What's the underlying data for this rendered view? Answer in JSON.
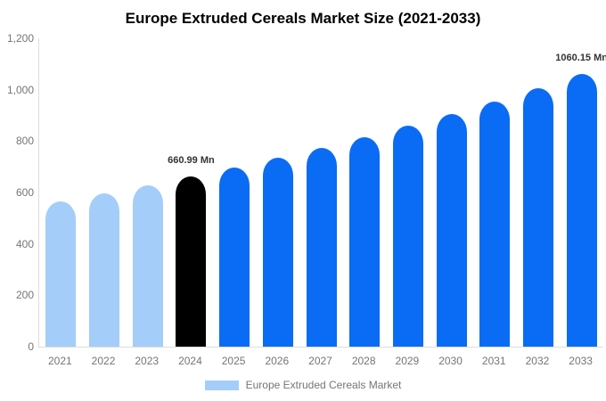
{
  "title": "Europe Extruded Cereals Market Size (2021-2033)",
  "legend": {
    "label": "Europe Extruded Cereals Market",
    "swatch_color": "#a4cdfa"
  },
  "colors": {
    "past_bar": "#a4cdfa",
    "highlight_bar": "#000000",
    "forecast_bar": "#0a6cf5",
    "axis_line": "#dddddd",
    "axis_label": "#757575",
    "data_label": "#333333"
  },
  "chart_data": {
    "type": "bar",
    "title": "Europe Extruded Cereals Market Size (2021-2033)",
    "categories": [
      "2021",
      "2022",
      "2023",
      "2024",
      "2025",
      "2026",
      "2027",
      "2028",
      "2029",
      "2030",
      "2031",
      "2032",
      "2033"
    ],
    "values": [
      564.7,
      595.1,
      627.2,
      660.99,
      696.6,
      734.2,
      773.8,
      815.5,
      859.4,
      905.8,
      954.6,
      1006.1,
      1060.15
    ],
    "unit": "Mn",
    "bar_colors": [
      "#a4cdfa",
      "#a4cdfa",
      "#a4cdfa",
      "#000000",
      "#0a6cf5",
      "#0a6cf5",
      "#0a6cf5",
      "#0a6cf5",
      "#0a6cf5",
      "#0a6cf5",
      "#0a6cf5",
      "#0a6cf5",
      "#0a6cf5"
    ],
    "data_labels": [
      {
        "index": 3,
        "text": "660.99 Mn"
      },
      {
        "index": 12,
        "text": "1060.15 Mn"
      }
    ],
    "xlabel": "",
    "ylabel": "",
    "ylim": [
      0,
      1200
    ],
    "ytick_step": 200,
    "yticks": [
      "0",
      "200",
      "400",
      "600",
      "800",
      "1,000",
      "1,200"
    ],
    "grid": false,
    "legend_position": "bottom"
  }
}
